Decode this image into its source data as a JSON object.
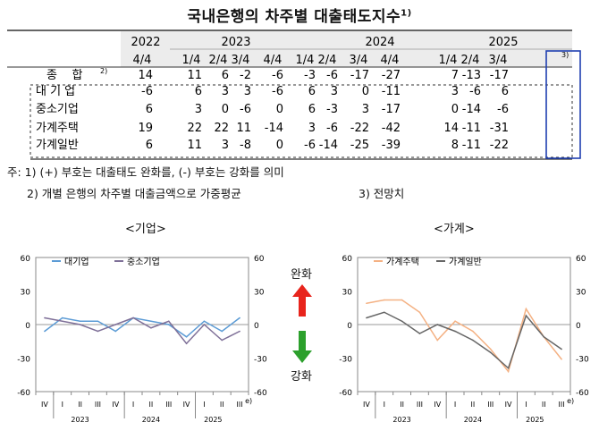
{
  "title": "국내은행의 차주별 대출태도지수",
  "title_note": "1)",
  "table": {
    "years": [
      {
        "label": "2022",
        "cols": [
          0
        ]
      },
      {
        "label": "2023",
        "cols": [
          1,
          2,
          3,
          4
        ]
      },
      {
        "label": "2024",
        "cols": [
          5,
          6,
          7,
          8
        ]
      },
      {
        "label": "2025",
        "cols": [
          9,
          10,
          11
        ]
      }
    ],
    "quarters": [
      "4/4",
      "1/4",
      "2/4",
      "3/4",
      "4/4",
      "1/4",
      "2/4",
      "3/4",
      "4/4",
      "1/4",
      "2/4",
      "3/4"
    ],
    "last_quarter_note": "3)",
    "rows": [
      {
        "label": "종    합",
        "note": "2)",
        "values": [
          "14",
          "11",
          "6",
          "-2",
          "-6",
          "-3",
          "-6",
          "-17",
          "-27",
          "7",
          "-13",
          "-17"
        ]
      },
      {
        "label": "대 기 업",
        "note": "",
        "values": [
          "-6",
          "6",
          "3",
          "3",
          "-6",
          "6",
          "3",
          "0",
          "-11",
          "3",
          "-6",
          "6"
        ]
      },
      {
        "label": "중소기업",
        "note": "",
        "values": [
          "6",
          "3",
          "0",
          "-6",
          "0",
          "6",
          "-3",
          "3",
          "-17",
          "0",
          "-14",
          "-6"
        ]
      },
      {
        "label": "가계주택",
        "note": "",
        "values": [
          "19",
          "22",
          "22",
          "11",
          "-14",
          "3",
          "-6",
          "-22",
          "-42",
          "14",
          "-11",
          "-31"
        ]
      },
      {
        "label": "가계일반",
        "note": "",
        "values": [
          "6",
          "11",
          "3",
          "-8",
          "0",
          "-6",
          "-14",
          "-25",
          "-39",
          "8",
          "-11",
          "-22"
        ]
      }
    ]
  },
  "notes": [
    "주: 1) (+) 부호는 대출태도 완화를, (-) 부호는 강화를 의미",
    "2) 개별 은행의 차주별 대출금액으로 가중평균",
    "3) 전망치"
  ],
  "colors": {
    "large": "#5b9bd5",
    "sme": "#7f7098",
    "housing": "#f4b183",
    "general": "#666666",
    "up": "#e8241c",
    "down": "#2ca02c",
    "box": "#1f3fb0"
  },
  "arrows": {
    "up_label": "완화",
    "down_label": "강화"
  },
  "chart_data": [
    {
      "type": "line",
      "title": "<기업>",
      "x_ticks": [
        "IV",
        "I",
        "II",
        "III",
        "IV",
        "I",
        "II",
        "III",
        "IV",
        "I",
        "II",
        "III"
      ],
      "last_tick_note": "e)",
      "year_labels": [
        {
          "label": "2023",
          "center": 2.5
        },
        {
          "label": "2024",
          "center": 6.5
        },
        {
          "label": "2025",
          "center": 10
        }
      ],
      "ylim": [
        -60,
        60
      ],
      "y_ticks": [
        60,
        30,
        0,
        -30,
        -60
      ],
      "y_tick_labels": [
        "60",
        "30",
        "0",
        "-30",
        "-60"
      ],
      "series": [
        {
          "name": "대기업",
          "color": "#5b9bd5",
          "values": [
            -6,
            6,
            3,
            3,
            -6,
            6,
            3,
            0,
            -11,
            3,
            -6,
            6
          ]
        },
        {
          "name": "중소기업",
          "color": "#7f7098",
          "values": [
            6,
            3,
            0,
            -6,
            0,
            6,
            -3,
            3,
            -17,
            0,
            -14,
            -6
          ]
        }
      ]
    },
    {
      "type": "line",
      "title": "<가계>",
      "x_ticks": [
        "IV",
        "I",
        "II",
        "III",
        "IV",
        "I",
        "II",
        "III",
        "IV",
        "I",
        "II",
        "III"
      ],
      "last_tick_note": "e)",
      "year_labels": [
        {
          "label": "2023",
          "center": 2.5
        },
        {
          "label": "2024",
          "center": 6.5
        },
        {
          "label": "2025",
          "center": 10
        }
      ],
      "ylim": [
        -60,
        60
      ],
      "y_ticks": [
        60,
        30,
        0,
        -30,
        -60
      ],
      "y_tick_labels": [
        "60",
        "30",
        "0",
        "-30",
        "-60"
      ],
      "series": [
        {
          "name": "가계주택",
          "color": "#f4b183",
          "values": [
            19,
            22,
            22,
            11,
            -14,
            3,
            -6,
            -22,
            -42,
            14,
            -11,
            -31
          ]
        },
        {
          "name": "가계일반",
          "color": "#666666",
          "values": [
            6,
            11,
            3,
            -8,
            0,
            -6,
            -14,
            -25,
            -39,
            8,
            -11,
            -22
          ]
        }
      ]
    }
  ]
}
